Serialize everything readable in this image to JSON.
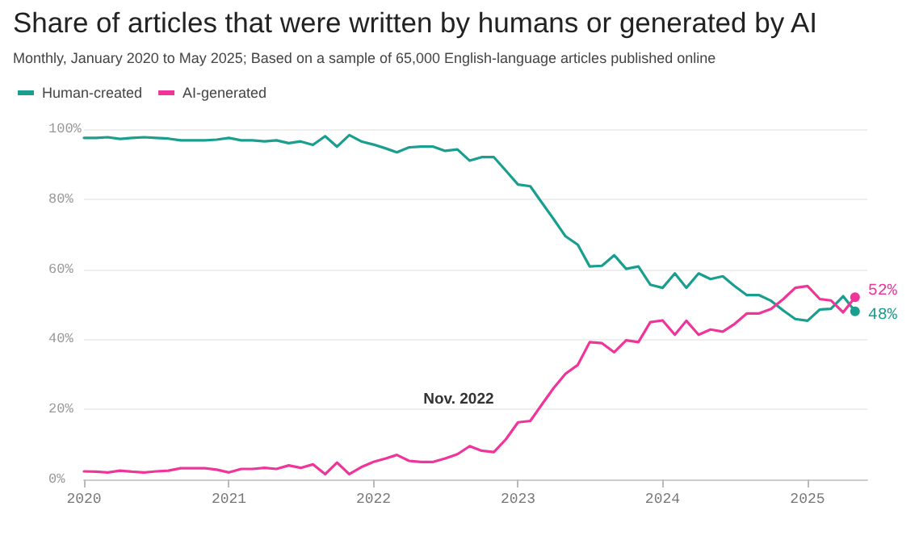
{
  "chart_data": {
    "type": "line",
    "title": "Share of articles that were written by humans or generated by AI",
    "subtitle": "Monthly, January 2020 to May 2025; Based on a sample of 65,000 English-language articles published online",
    "x": [
      "2020-01",
      "2020-02",
      "2020-03",
      "2020-04",
      "2020-05",
      "2020-06",
      "2020-07",
      "2020-08",
      "2020-09",
      "2020-10",
      "2020-11",
      "2020-12",
      "2021-01",
      "2021-02",
      "2021-03",
      "2021-04",
      "2021-05",
      "2021-06",
      "2021-07",
      "2021-08",
      "2021-09",
      "2021-10",
      "2021-11",
      "2021-12",
      "2022-01",
      "2022-02",
      "2022-03",
      "2022-04",
      "2022-05",
      "2022-06",
      "2022-07",
      "2022-08",
      "2022-09",
      "2022-10",
      "2022-11",
      "2022-12",
      "2023-01",
      "2023-02",
      "2023-03",
      "2023-04",
      "2023-05",
      "2023-06",
      "2023-07",
      "2023-08",
      "2023-09",
      "2023-10",
      "2023-11",
      "2023-12",
      "2024-01",
      "2024-02",
      "2024-03",
      "2024-04",
      "2024-05",
      "2024-06",
      "2024-07",
      "2024-08",
      "2024-09",
      "2024-10",
      "2024-11",
      "2024-12",
      "2025-01",
      "2025-02",
      "2025-03",
      "2025-04",
      "2025-05"
    ],
    "series": [
      {
        "name": "Human-created",
        "color": "#1a9e8f",
        "values": [
          97.5,
          97.5,
          97.7,
          97.2,
          97.5,
          97.7,
          97.5,
          97.3,
          96.8,
          96.8,
          96.8,
          97.0,
          97.5,
          96.8,
          96.8,
          96.5,
          96.8,
          96,
          96.5,
          95.5,
          98,
          95,
          98.3,
          96.5,
          95.6,
          94.5,
          93.4,
          94.8,
          95,
          95,
          93.8,
          94.2,
          91,
          92,
          92,
          88.2,
          84.2,
          83.7,
          79.2,
          74.3,
          69.4,
          67,
          60.8,
          61,
          64,
          60.1,
          60.8,
          55.6,
          54.7,
          58.8,
          54.7,
          58.8,
          57.2,
          58,
          55.2,
          52.6,
          52.6,
          51,
          48.2,
          45.8,
          45.3,
          48.5,
          48.7,
          52.3,
          48
        ],
        "value_labels": [
          null,
          null,
          null,
          null,
          null,
          null,
          null,
          null,
          null,
          null,
          null,
          null,
          null,
          null,
          null,
          null,
          null,
          null,
          null,
          null,
          null,
          null,
          null,
          null,
          null,
          null,
          null,
          null,
          null,
          null,
          null,
          null,
          null,
          null,
          null,
          null,
          null,
          null,
          null,
          null,
          null,
          null,
          null,
          null,
          null,
          null,
          null,
          null,
          null,
          null,
          null,
          null,
          null,
          null,
          null,
          null,
          null,
          null,
          null,
          null,
          null,
          null,
          null,
          null,
          "48%"
        ]
      },
      {
        "name": "AI-generated",
        "color": "#f0359a",
        "values": [
          2.3,
          2.2,
          2.0,
          2.5,
          2.2,
          2.0,
          2.3,
          2.5,
          3.2,
          3.2,
          3.2,
          2.8,
          2.0,
          3.0,
          3.0,
          3.3,
          3.0,
          4.0,
          3.3,
          4.3,
          1.5,
          4.8,
          1.5,
          3.5,
          5.0,
          6.0,
          7.0,
          5.3,
          5.0,
          5.0,
          6.0,
          7.2,
          9.5,
          8.2,
          7.8,
          11.4,
          16.3,
          16.7,
          21.2,
          26.1,
          30.2,
          32.7,
          39.2,
          38.9,
          36.3,
          39.7,
          39.2,
          44.9,
          45.4,
          41.3,
          45.3,
          41.3,
          42.8,
          42.2,
          44.4,
          47.4,
          47.4,
          48.7,
          51.5,
          54.7,
          55.2,
          51.5,
          51.1,
          47.7,
          52
        ],
        "value_labels": [
          null,
          null,
          null,
          null,
          null,
          null,
          null,
          null,
          null,
          null,
          null,
          null,
          null,
          null,
          null,
          null,
          null,
          null,
          null,
          null,
          null,
          null,
          null,
          null,
          null,
          null,
          null,
          null,
          null,
          null,
          null,
          null,
          null,
          null,
          null,
          null,
          null,
          null,
          null,
          null,
          null,
          null,
          null,
          null,
          null,
          null,
          null,
          null,
          null,
          null,
          null,
          null,
          null,
          null,
          null,
          null,
          null,
          null,
          null,
          null,
          null,
          null,
          null,
          null,
          "52%"
        ]
      }
    ],
    "xlim": [
      "2020-01",
      "2025-06"
    ],
    "xticks": [
      "2020",
      "2021",
      "2022",
      "2023",
      "2024",
      "2025"
    ],
    "ylim": [
      0,
      100
    ],
    "yticks": [
      {
        "value": 0,
        "label": "0%"
      },
      {
        "value": 20,
        "label": "20%"
      },
      {
        "value": 40,
        "label": "40%"
      },
      {
        "value": 60,
        "label": "60%"
      },
      {
        "value": 80,
        "label": "80%"
      },
      {
        "value": 100,
        "label": "100%"
      }
    ],
    "annotations": [
      {
        "text": "Nov. 2022",
        "x": "2022-11",
        "y": 10
      }
    ],
    "grid": "y",
    "legend": "top left",
    "marker": "none",
    "line_style": "solid"
  }
}
